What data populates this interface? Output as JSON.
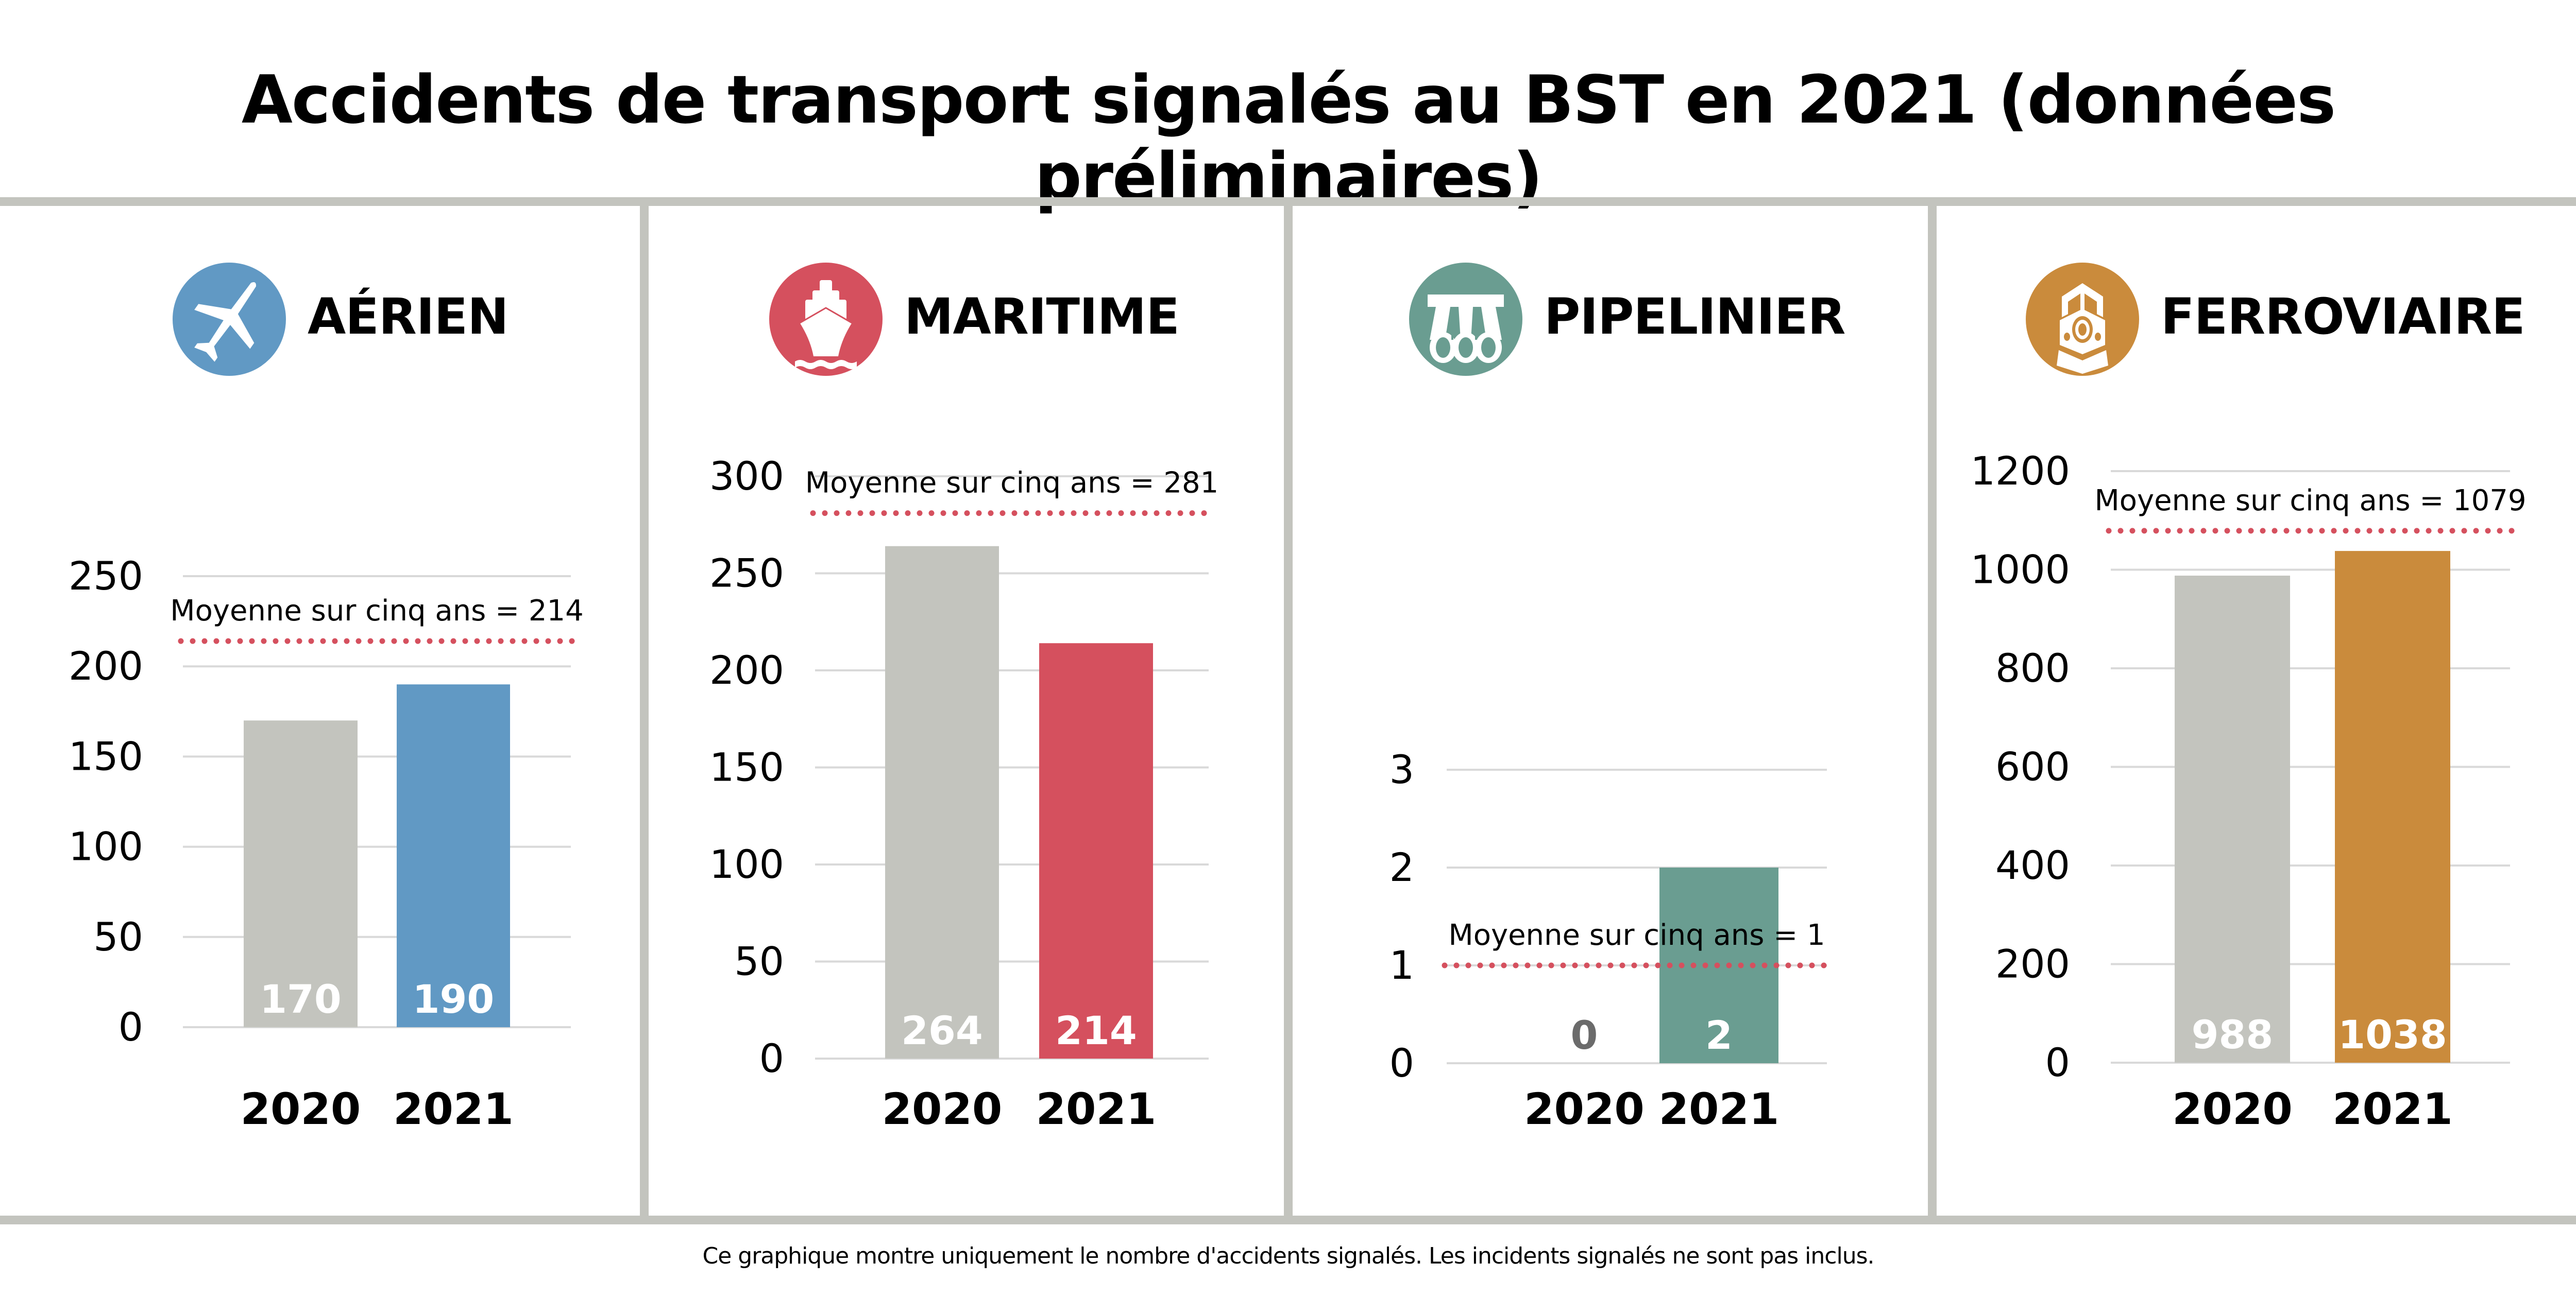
{
  "title": "Accidents de transport signalés au BST en 2021 (données préliminaires)",
  "footer": "Ce graphique montre uniquement le nombre d'accidents signalés. Les incidents signalés ne sont pas inclus.",
  "colors": {
    "grey_bar": "#C3C4BE",
    "avg_line": "#D5505E",
    "gridline": "#D9D9D9",
    "divider": "#C3C4BE"
  },
  "panels": [
    {
      "key": "aerien",
      "label": "AÉRIEN",
      "icon": "airplane-icon",
      "color": "#6199C4"
    },
    {
      "key": "maritime",
      "label": "MARITIME",
      "icon": "ship-icon",
      "color": "#D5505E"
    },
    {
      "key": "pipelinier",
      "label": "PIPELINIER",
      "icon": "pipeline-icon",
      "color": "#6A9D91"
    },
    {
      "key": "ferroviaire",
      "label": "FERROVIAIRE",
      "icon": "train-icon",
      "color": "#CA8B3C"
    }
  ],
  "chart_data": [
    {
      "type": "bar",
      "title": "AÉRIEN",
      "categories": [
        "2020",
        "2021"
      ],
      "values": [
        170,
        190
      ],
      "value_labels": [
        "170",
        "190"
      ],
      "bar_colors": [
        "#C3C4BE",
        "#6199C4"
      ],
      "yticks": [
        0,
        50,
        100,
        150,
        200,
        250
      ],
      "ylim": [
        0,
        250
      ],
      "grid": true,
      "reference_line": {
        "value": 214,
        "label": "Moyenne sur cinq ans = 214",
        "style": "dotted"
      }
    },
    {
      "type": "bar",
      "title": "MARITIME",
      "categories": [
        "2020",
        "2021"
      ],
      "values": [
        264,
        214
      ],
      "value_labels": [
        "264",
        "214"
      ],
      "bar_colors": [
        "#C3C4BE",
        "#D5505E"
      ],
      "yticks": [
        0,
        50,
        100,
        150,
        200,
        250,
        300
      ],
      "ylim": [
        0,
        300
      ],
      "grid": true,
      "reference_line": {
        "value": 281,
        "label": "Moyenne sur cinq ans = 281",
        "style": "dotted"
      }
    },
    {
      "type": "bar",
      "title": "PIPELINIER",
      "categories": [
        "2020",
        "2021"
      ],
      "values": [
        0,
        2
      ],
      "value_labels": [
        "0",
        "2"
      ],
      "bar_colors": [
        "#C3C4BE",
        "#6A9D91"
      ],
      "yticks": [
        0,
        1,
        2,
        3
      ],
      "ylim": [
        0,
        3
      ],
      "grid": true,
      "reference_line": {
        "value": 1,
        "label": "Moyenne sur cinq ans = 1",
        "style": "dotted"
      }
    },
    {
      "type": "bar",
      "title": "FERROVIAIRE",
      "categories": [
        "2020",
        "2021"
      ],
      "values": [
        988,
        1038
      ],
      "value_labels": [
        "988",
        "1038"
      ],
      "bar_colors": [
        "#C3C4BE",
        "#CA8B3C"
      ],
      "yticks": [
        0,
        200,
        400,
        600,
        800,
        1000,
        1200
      ],
      "ylim": [
        0,
        1200
      ],
      "grid": true,
      "reference_line": {
        "value": 1079,
        "label": "Moyenne sur cinq ans = 1079",
        "style": "dotted"
      }
    }
  ]
}
